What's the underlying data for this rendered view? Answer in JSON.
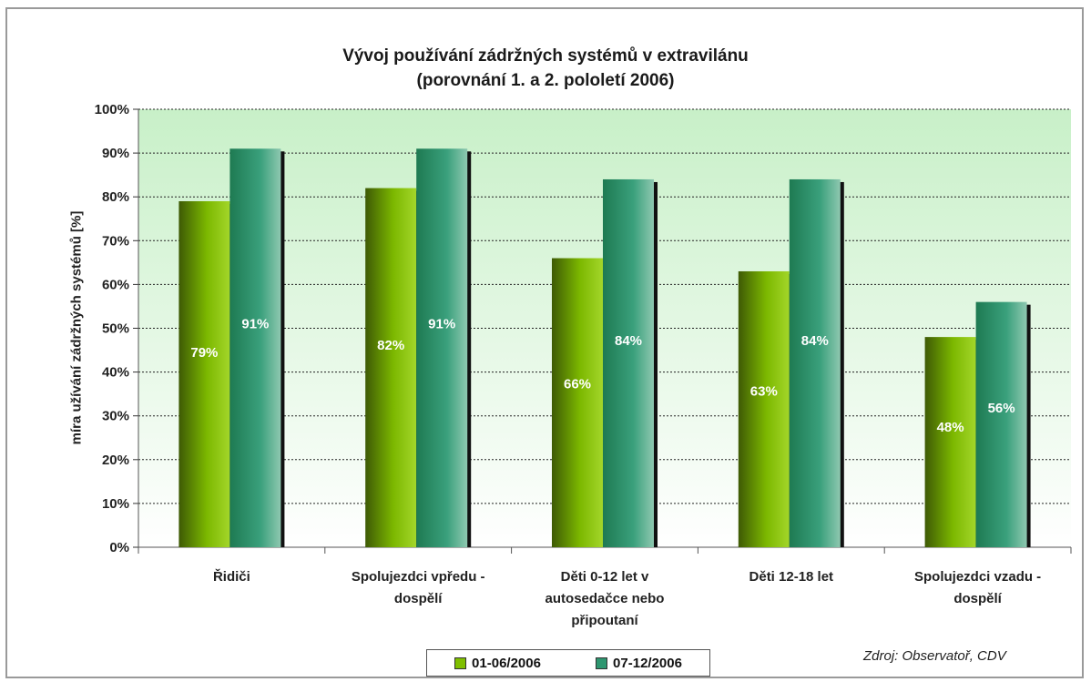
{
  "chart_data": {
    "type": "bar",
    "title": "Vývoj používání zádržných systémů v extravilánu",
    "subtitle": "(porovnání 1. a 2. pololetí 2006)",
    "ylabel": "míra užívání zádržných systémů [%]",
    "xlabel": "",
    "ylim": [
      0,
      100
    ],
    "y_ticks": [
      "0%",
      "10%",
      "20%",
      "30%",
      "40%",
      "50%",
      "60%",
      "70%",
      "80%",
      "90%",
      "100%"
    ],
    "grid": true,
    "legend_position": "bottom",
    "categories": [
      "Řidiči",
      "Spolujezdci vpředu -\ndospělí",
      "Děti 0-12 let v\nautosedačce nebo\npřipoutaní",
      "Děti 12-18 let",
      "Spolujezdci vzadu -\ndospělí"
    ],
    "series": [
      {
        "name": "01-06/2006",
        "values": [
          79,
          82,
          66,
          63,
          48
        ],
        "labels": [
          "79%",
          "82%",
          "66%",
          "63%",
          "48%"
        ],
        "color": "#7fbf00"
      },
      {
        "name": "07-12/2006",
        "values": [
          91,
          91,
          84,
          84,
          56
        ],
        "labels": [
          "91%",
          "91%",
          "84%",
          "84%",
          "56%"
        ],
        "color": "#2e9670"
      }
    ],
    "source": "Zdroj: Observatoř, CDV"
  }
}
